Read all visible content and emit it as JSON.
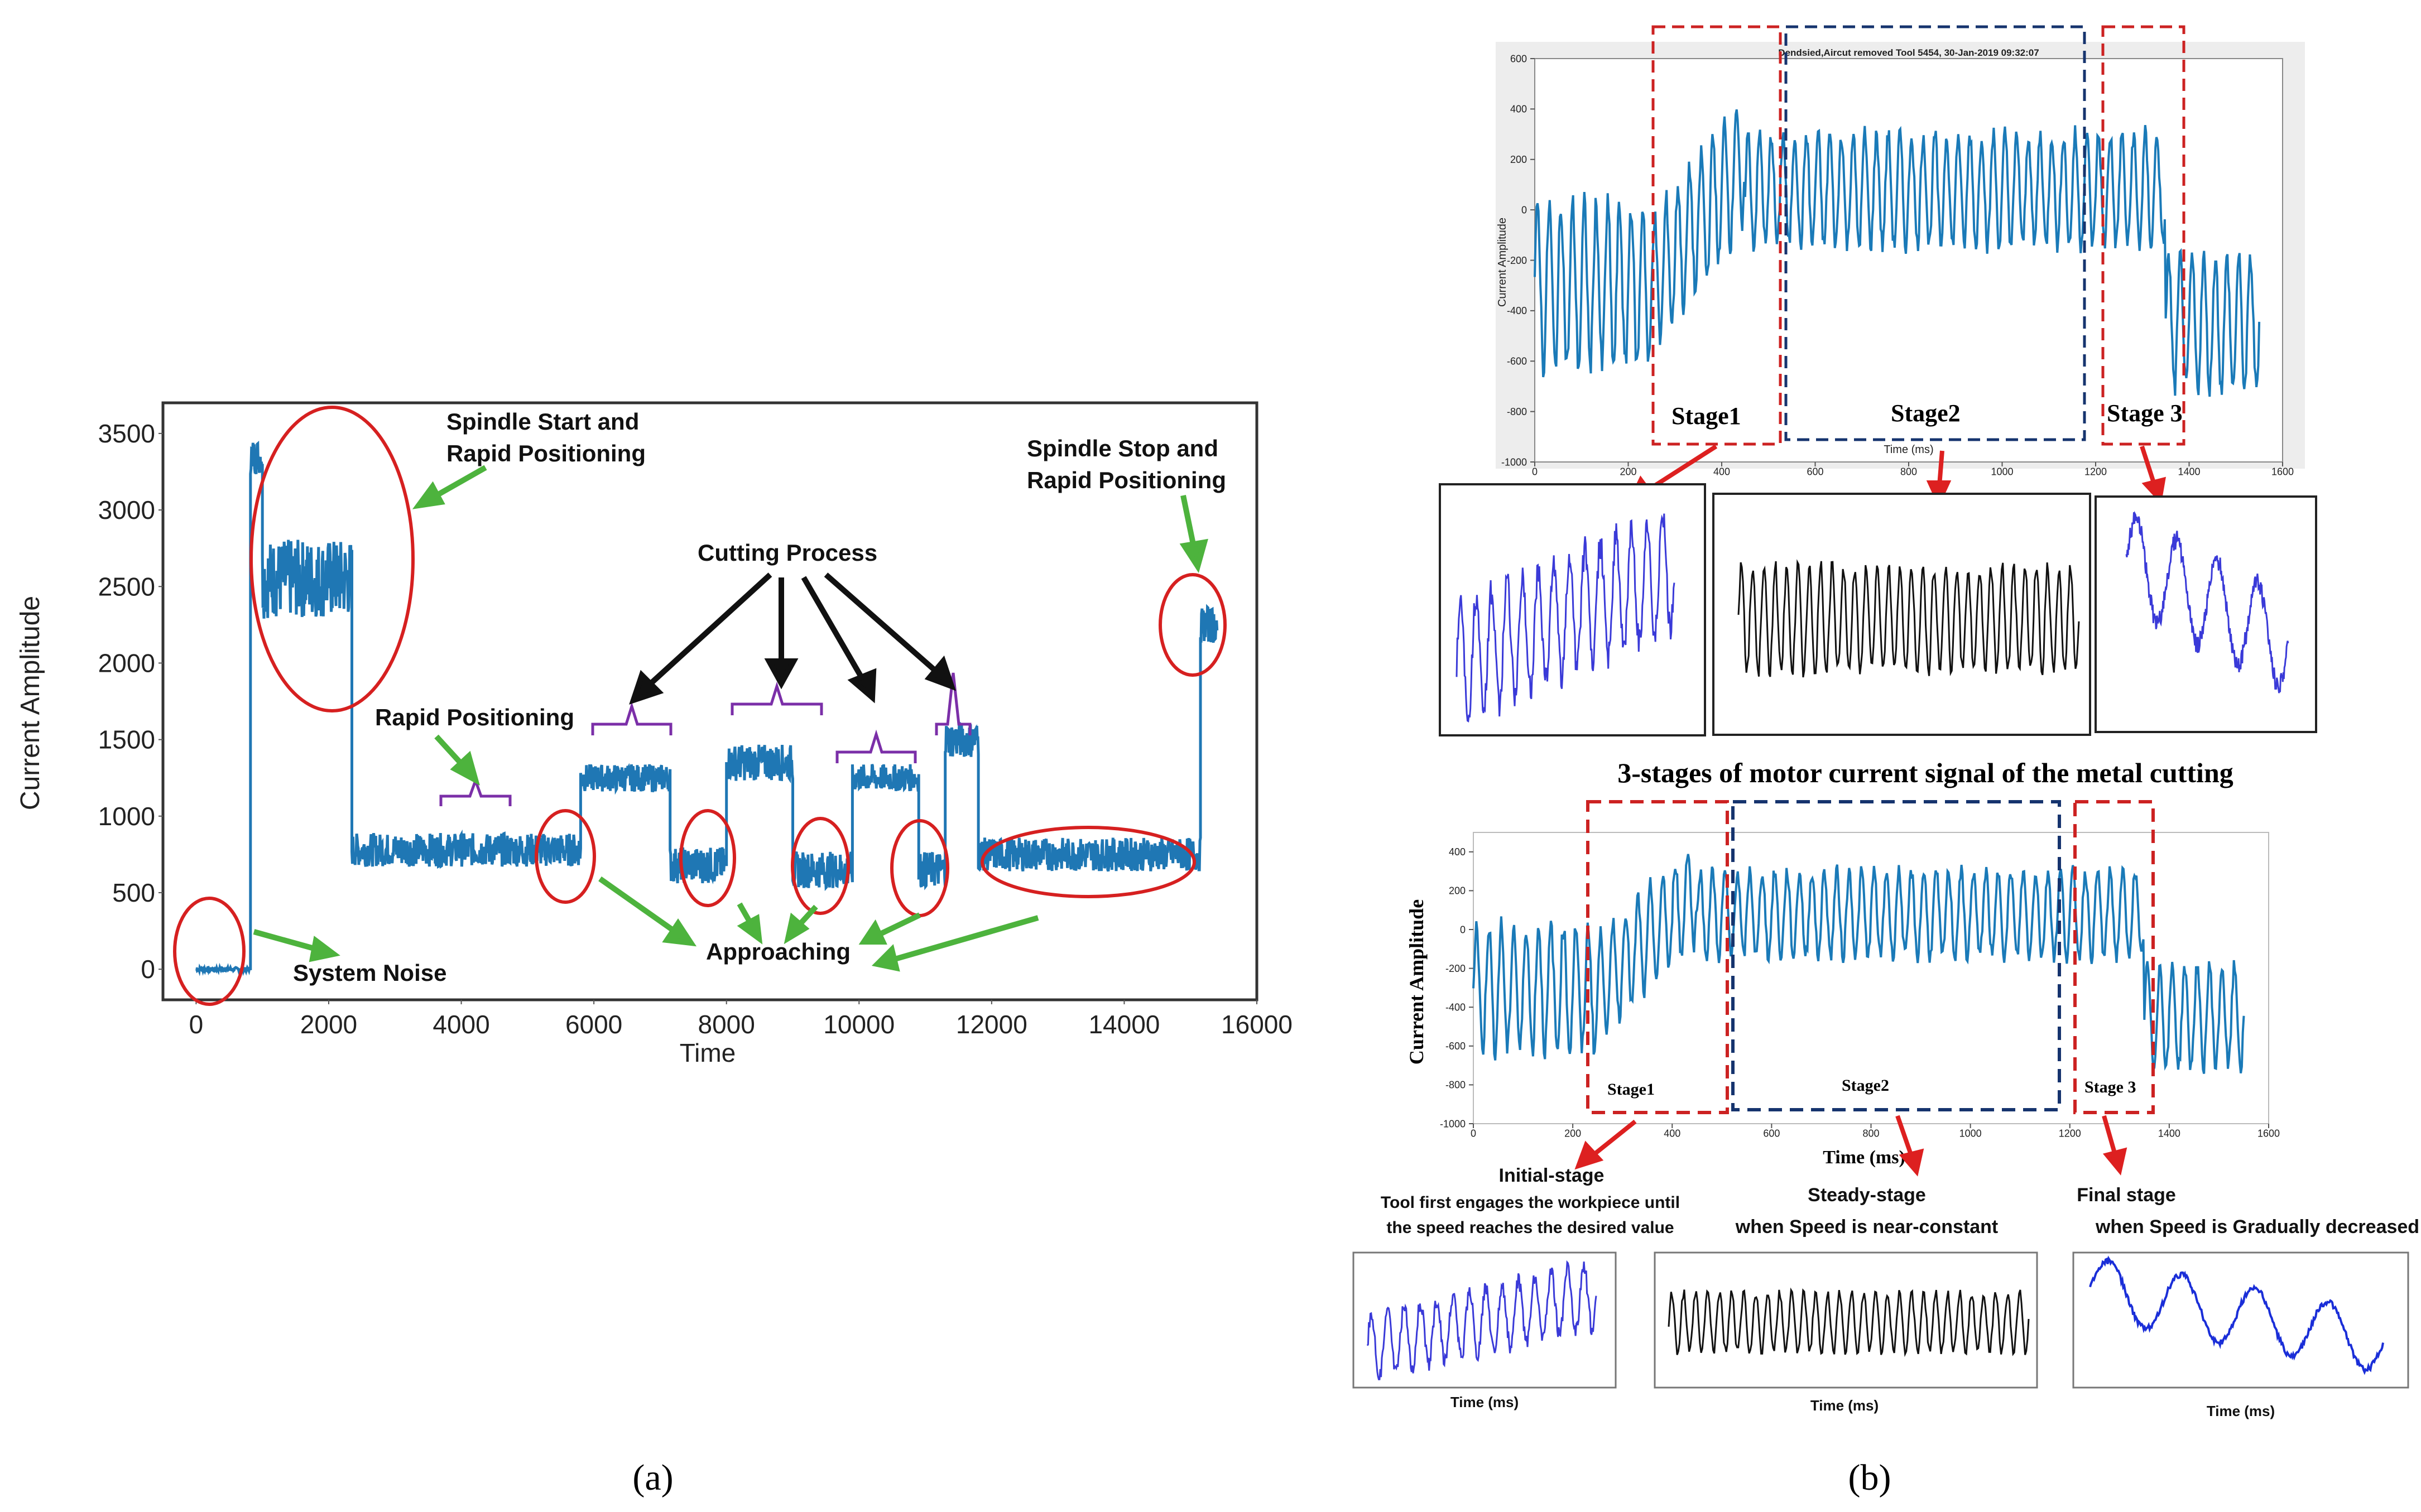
{
  "panel_labels": [
    "(a)",
    "(b)"
  ],
  "chart_data": [
    {
      "id": "panel-a",
      "type": "line",
      "xlabel": "Time",
      "ylabel": "Current Amplitude",
      "xlim": [
        -500,
        16000
      ],
      "ylim": [
        -200,
        3700
      ],
      "xticks": [
        0,
        2000,
        4000,
        6000,
        8000,
        10000,
        12000,
        14000,
        16000
      ],
      "yticks": [
        0,
        500,
        1000,
        1500,
        2000,
        2500,
        3000,
        3500
      ],
      "line_color": "#1f77b4",
      "segments": [
        {
          "t0": 0,
          "t1": 820,
          "level": 0,
          "noise": 12
        },
        {
          "t0": 820,
          "t1": 1000,
          "level": 3350,
          "noise": 120
        },
        {
          "t0": 1000,
          "t1": 2350,
          "level": 2550,
          "noise": 260
        },
        {
          "t0": 2350,
          "t1": 5800,
          "level": 780,
          "noise": 110
        },
        {
          "t0": 5800,
          "t1": 7150,
          "level": 1250,
          "noise": 90
        },
        {
          "t0": 7150,
          "t1": 8000,
          "level": 680,
          "noise": 120
        },
        {
          "t0": 8000,
          "t1": 9000,
          "level": 1350,
          "noise": 120
        },
        {
          "t0": 9000,
          "t1": 9900,
          "level": 650,
          "noise": 120
        },
        {
          "t0": 9900,
          "t1": 10900,
          "level": 1250,
          "noise": 90
        },
        {
          "t0": 10900,
          "t1": 11300,
          "level": 650,
          "noise": 120
        },
        {
          "t0": 11300,
          "t1": 11800,
          "level": 1500,
          "noise": 120
        },
        {
          "t0": 11800,
          "t1": 15150,
          "level": 750,
          "noise": 110
        },
        {
          "t0": 15150,
          "t1": 15400,
          "level": 2250,
          "noise": 120
        }
      ],
      "annotations": [
        {
          "label": "Spindle Start and",
          "label2": "Rapid Positioning"
        },
        {
          "label": "Spindle Stop and",
          "label2": "Rapid Positioning"
        },
        {
          "label": "Cutting Process"
        },
        {
          "label": "Rapid Positioning"
        },
        {
          "label": "Approaching"
        },
        {
          "label": "System Noise"
        }
      ]
    },
    {
      "id": "panel-b-top",
      "type": "line",
      "title": "Dendsied,Aircut removed Tool 5454, 30-Jan-2019 09:32:07",
      "xlabel": "Time (ms)",
      "ylabel": "Current Amplitude",
      "xlim": [
        0,
        1600
      ],
      "ylim": [
        -1000,
        600
      ],
      "xticks": [
        0,
        200,
        400,
        600,
        800,
        1000,
        1200,
        1400,
        1600
      ],
      "yticks": [
        -1000,
        -800,
        -600,
        -400,
        -200,
        0,
        200,
        400,
        600
      ],
      "stages": [
        "Stage1",
        "Stage2",
        "Stage 3"
      ]
    },
    {
      "id": "panel-b-bottom",
      "type": "line",
      "heading": "3-stages of motor current signal of the metal cutting",
      "xlabel": "Time (ms)",
      "ylabel": "Current Amplitude",
      "xlim": [
        0,
        1600
      ],
      "ylim": [
        -1000,
        500
      ],
      "xticks": [
        0,
        200,
        400,
        600,
        800,
        1000,
        1200,
        1400,
        1600
      ],
      "yticks": [
        -1000,
        -800,
        -600,
        -400,
        -200,
        0,
        200,
        400
      ],
      "stages": [
        "Stage1",
        "Stage2",
        "Stage 3"
      ],
      "stage_captions": [
        {
          "title": "Initial-stage",
          "line1": "Tool first engages the workpiece until",
          "line2": "the speed reaches the desired value"
        },
        {
          "title": "Steady-stage",
          "line1": "when Speed is near-constant"
        },
        {
          "title": "Final stage",
          "line1": "when Speed is Gradually decreased"
        }
      ],
      "sub_xlabel": "Time (ms)"
    }
  ]
}
